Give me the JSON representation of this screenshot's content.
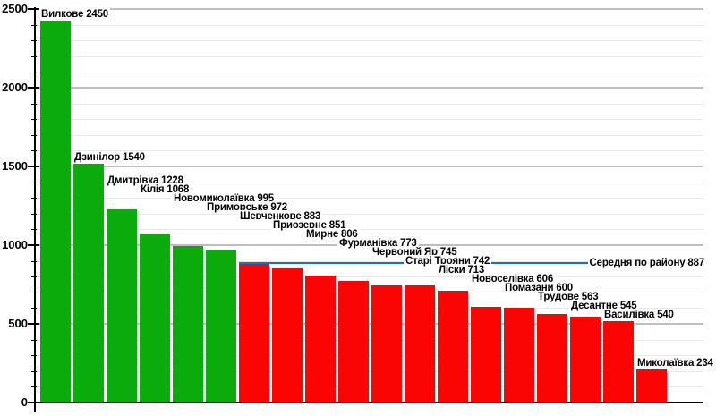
{
  "chart_data": {
    "type": "bar",
    "title": "",
    "categories": [
      "Вилкове",
      "Дзинілор",
      "Дмитрівка",
      "Кілія",
      "Новомиколаївка",
      "Приморське",
      "Шевченкове",
      "Приозерне",
      "Мирне",
      "Фурманівка",
      "Червоний Яр",
      "Старі Трояни",
      "Ліски",
      "Новоселівка",
      "Помазани",
      "Трудове",
      "Десантне",
      "Василівка",
      "Миколаївка"
    ],
    "values": [
      2450,
      1540,
      1228,
      1068,
      995,
      972,
      883,
      851,
      806,
      773,
      745,
      742,
      713,
      606,
      600,
      563,
      545,
      540,
      234
    ],
    "bar_labels": [
      "Вилкове 2450",
      "Дзинілор 1540",
      "Дмитрівка 1228",
      "Кілія 1068",
      "Новомиколаївка 995",
      "Приморське 972",
      "Шевченкове 883",
      "Приозерне 851",
      "Мирне 806",
      "Фурманівка 773",
      "Червоний Яр 745",
      "Старі Трояни 742",
      "Ліски 713",
      "Новоселівка 606",
      "Помазани 600",
      "Трудове 563",
      "Десантне 545",
      "Василівка 540",
      "Миколаївка 234"
    ],
    "average_line": {
      "label": "Середня по району",
      "value": 887,
      "label_text": "Середня по району 887"
    },
    "xlabel": "",
    "ylabel": "",
    "ylim": [
      0,
      2500
    ],
    "yticks": [
      0,
      500,
      1000,
      1500,
      2000,
      2500
    ],
    "ytick_labels": [
      "0",
      "500",
      "1000",
      "1500",
      "2000",
      "2500"
    ],
    "minor_step": 100,
    "grid": "on",
    "legend": "none",
    "colors": {
      "bar_above_average": "#0AAB0A",
      "bar_below_average": "#FB0404",
      "average_line": "#1273CE",
      "grid_major": "#BEBEBE",
      "grid_minor": "#E9E9E9",
      "axis": "#000000",
      "label_text": "#000000",
      "background": "#FFFFFF"
    }
  }
}
